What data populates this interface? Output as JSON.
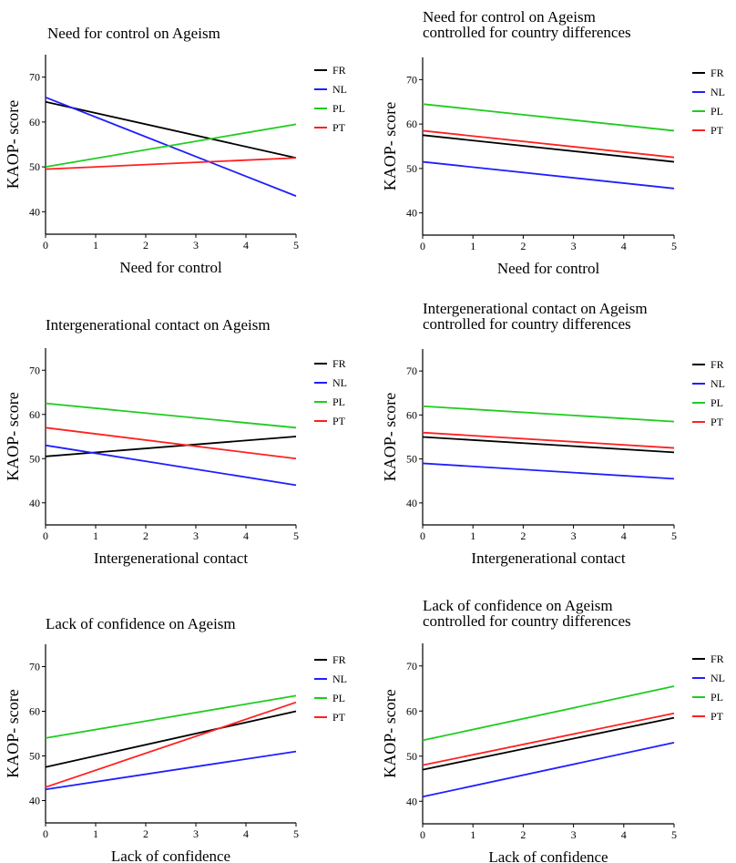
{
  "colors": {
    "FR": "#000000",
    "NL": "#1f1fff",
    "PL": "#1fcc1f",
    "PT": "#ff2020"
  },
  "chart_data": [
    {
      "type": "line",
      "title": [
        "Need for control on Ageism"
      ],
      "xlabel": "Need for control",
      "ylabel": "KAOP- score",
      "xlim": [
        0,
        5
      ],
      "ylim": [
        35,
        75
      ],
      "x_ticks": [
        0,
        1,
        2,
        3,
        4,
        5
      ],
      "y_ticks": [
        40,
        50,
        60,
        70
      ],
      "legend": "right",
      "series": [
        {
          "name": "FR",
          "x": [
            0,
            5
          ],
          "y": [
            64.5,
            52
          ]
        },
        {
          "name": "NL",
          "x": [
            0,
            5
          ],
          "y": [
            65.5,
            43.5
          ]
        },
        {
          "name": "PL",
          "x": [
            0,
            5
          ],
          "y": [
            50,
            59.5
          ]
        },
        {
          "name": "PT",
          "x": [
            0,
            5
          ],
          "y": [
            49.5,
            52
          ]
        }
      ]
    },
    {
      "type": "line",
      "title": [
        "Need for control on Ageism",
        "controlled for country differences"
      ],
      "xlabel": "Need for control",
      "ylabel": "KAOP- score",
      "xlim": [
        0,
        5
      ],
      "ylim": [
        35,
        75
      ],
      "x_ticks": [
        0,
        1,
        2,
        3,
        4,
        5
      ],
      "y_ticks": [
        40,
        50,
        60,
        70
      ],
      "legend": "right",
      "series": [
        {
          "name": "FR",
          "x": [
            0,
            5
          ],
          "y": [
            57.5,
            51.5
          ]
        },
        {
          "name": "NL",
          "x": [
            0,
            5
          ],
          "y": [
            51.5,
            45.5
          ]
        },
        {
          "name": "PL",
          "x": [
            0,
            5
          ],
          "y": [
            64.5,
            58.5
          ]
        },
        {
          "name": "PT",
          "x": [
            0,
            5
          ],
          "y": [
            58.5,
            52.5
          ]
        }
      ]
    },
    {
      "type": "line",
      "title": [
        "Intergenerational contact on Ageism"
      ],
      "xlabel": "Intergenerational contact",
      "ylabel": "KAOP- score",
      "xlim": [
        0,
        5
      ],
      "ylim": [
        35,
        75
      ],
      "x_ticks": [
        0,
        1,
        2,
        3,
        4,
        5
      ],
      "y_ticks": [
        40,
        50,
        60,
        70
      ],
      "legend": "right",
      "series": [
        {
          "name": "FR",
          "x": [
            0,
            5
          ],
          "y": [
            50.5,
            55
          ]
        },
        {
          "name": "NL",
          "x": [
            0,
            5
          ],
          "y": [
            53,
            44
          ]
        },
        {
          "name": "PL",
          "x": [
            0,
            5
          ],
          "y": [
            62.5,
            57
          ]
        },
        {
          "name": "PT",
          "x": [
            0,
            5
          ],
          "y": [
            57,
            50
          ]
        }
      ]
    },
    {
      "type": "line",
      "title": [
        "Intergenerational contact on Ageism",
        "controlled for country differences"
      ],
      "xlabel": "Intergenerational contact",
      "ylabel": "KAOP- score",
      "xlim": [
        0,
        5
      ],
      "ylim": [
        35,
        75
      ],
      "x_ticks": [
        0,
        1,
        2,
        3,
        4,
        5
      ],
      "y_ticks": [
        40,
        50,
        60,
        70
      ],
      "legend": "right",
      "series": [
        {
          "name": "FR",
          "x": [
            0,
            5
          ],
          "y": [
            55,
            51.5
          ]
        },
        {
          "name": "NL",
          "x": [
            0,
            5
          ],
          "y": [
            49,
            45.5
          ]
        },
        {
          "name": "PL",
          "x": [
            0,
            5
          ],
          "y": [
            62,
            58.5
          ]
        },
        {
          "name": "PT",
          "x": [
            0,
            5
          ],
          "y": [
            56,
            52.5
          ]
        }
      ]
    },
    {
      "type": "line",
      "title": [
        "Lack of confidence on Ageism"
      ],
      "xlabel": "Lack of confidence",
      "ylabel": "KAOP- score",
      "xlim": [
        0,
        5
      ],
      "ylim": [
        35,
        75
      ],
      "x_ticks": [
        0,
        1,
        2,
        3,
        4,
        5
      ],
      "y_ticks": [
        40,
        50,
        60,
        70
      ],
      "legend": "right",
      "series": [
        {
          "name": "FR",
          "x": [
            0,
            5
          ],
          "y": [
            47.5,
            60
          ]
        },
        {
          "name": "NL",
          "x": [
            0,
            5
          ],
          "y": [
            42.5,
            51
          ]
        },
        {
          "name": "PL",
          "x": [
            0,
            5
          ],
          "y": [
            54,
            63.5
          ]
        },
        {
          "name": "PT",
          "x": [
            0,
            5
          ],
          "y": [
            43,
            62
          ]
        }
      ]
    },
    {
      "type": "line",
      "title": [
        "Lack of confidence on Ageism",
        "controlled for country differences"
      ],
      "xlabel": "Lack of confidence",
      "ylabel": "KAOP- score",
      "xlim": [
        0,
        5
      ],
      "ylim": [
        35,
        75
      ],
      "x_ticks": [
        0,
        1,
        2,
        3,
        4,
        5
      ],
      "y_ticks": [
        40,
        50,
        60,
        70
      ],
      "legend": "right",
      "series": [
        {
          "name": "FR",
          "x": [
            0,
            5
          ],
          "y": [
            47,
            58.5
          ]
        },
        {
          "name": "NL",
          "x": [
            0,
            5
          ],
          "y": [
            41,
            53
          ]
        },
        {
          "name": "PL",
          "x": [
            0,
            5
          ],
          "y": [
            53.5,
            65.5
          ]
        },
        {
          "name": "PT",
          "x": [
            0,
            5
          ],
          "y": [
            48,
            59.5
          ]
        }
      ]
    }
  ]
}
